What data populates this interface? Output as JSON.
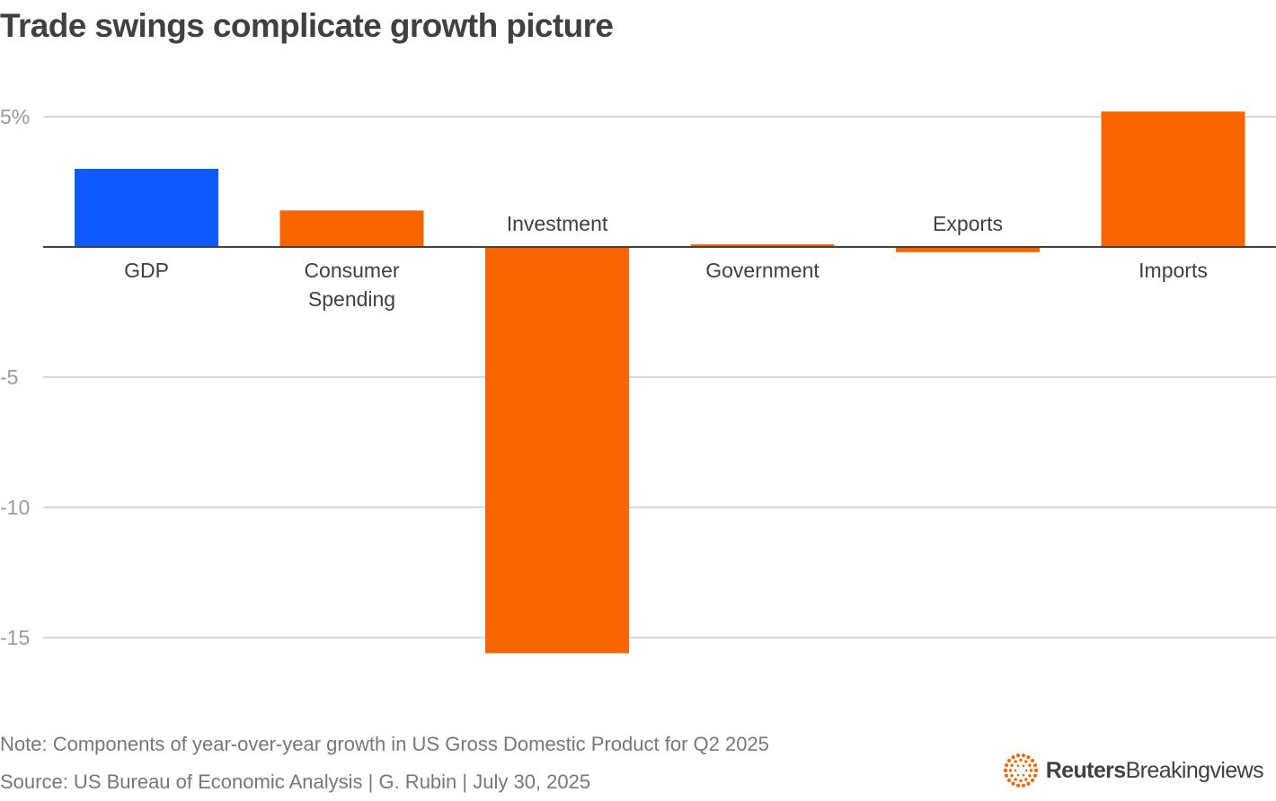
{
  "chart_data": {
    "type": "bar",
    "title": "Trade swings complicate growth picture",
    "categories": [
      "GDP",
      "Consumer Spending",
      "Investment",
      "Government",
      "Exports",
      "Imports"
    ],
    "category_lines": [
      [
        "GDP"
      ],
      [
        "Consumer",
        "Spending"
      ],
      [
        "Investment"
      ],
      [
        "Government"
      ],
      [
        "Exports"
      ],
      [
        "Imports"
      ]
    ],
    "values": [
      3.0,
      1.4,
      -15.6,
      0.1,
      -0.2,
      5.2
    ],
    "bar_colors": [
      "#0f5bff",
      "#f76500",
      "#f76500",
      "#f76500",
      "#f76500",
      "#f76500"
    ],
    "yticks": [
      5,
      0,
      -5,
      -10,
      -15
    ],
    "ytick_labels": [
      "5%",
      "",
      "-5",
      "-10",
      "-15"
    ],
    "ylim": [
      -17.5,
      6.5
    ],
    "xlabel": "",
    "ylabel": "",
    "grid": true,
    "legend": "none"
  },
  "footer": {
    "note": "Note: Components of year-over-year growth in US Gross Domestic Product for Q2 2025",
    "source": "Source: US Bureau of Economic Analysis | G. Rubin | July 30, 2025"
  },
  "brand": {
    "bold": "Reuters",
    "regular": "Breakingviews",
    "logo_icon": "reuters-dot-ring-icon",
    "logo_color": "#f76500"
  },
  "colors": {
    "grid": "#cccccc",
    "baseline": "#404040",
    "tick_text": "#9a9a9a",
    "label_text": "#404040"
  }
}
